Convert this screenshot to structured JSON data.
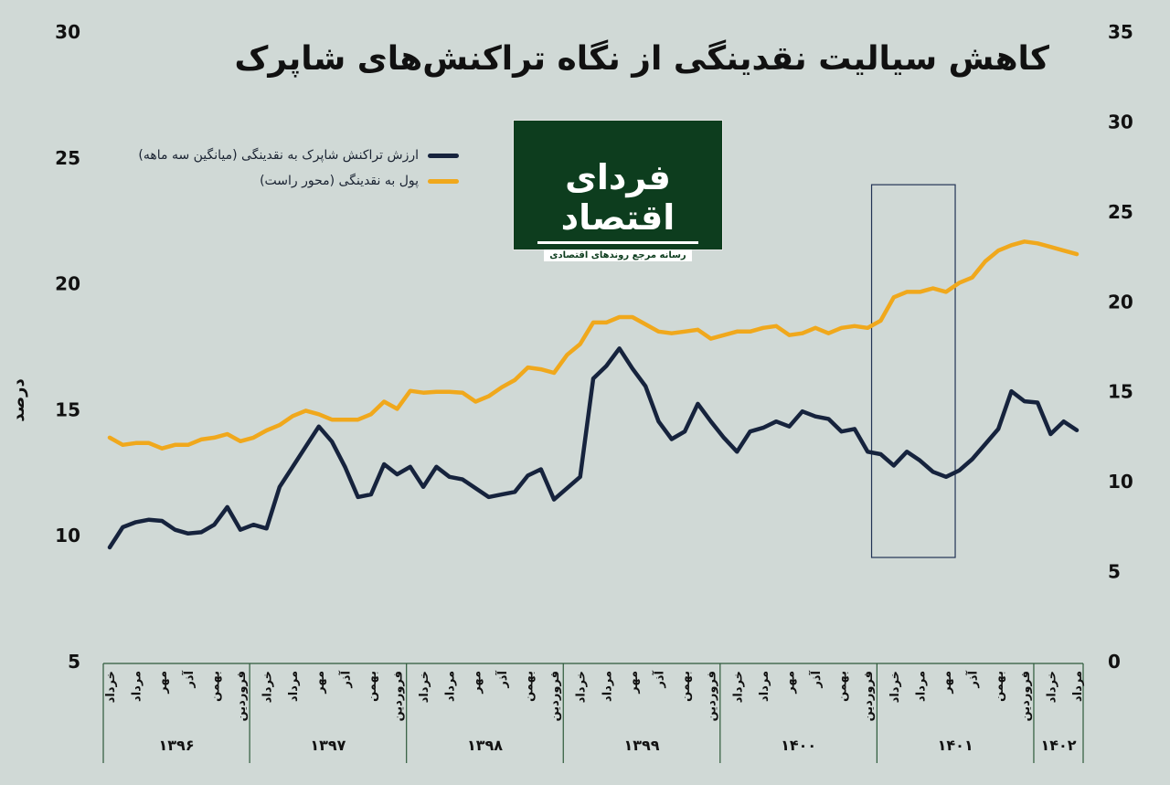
{
  "title": "کاهش سیالیت نقدینگی از نگاه تراکنش‌های شاپرک",
  "logo": {
    "main": "فردای اقتصاد",
    "sub": "رسانه مرجع روندهای اقتصادی"
  },
  "colors": {
    "background": "#d0d9d6",
    "series_navy": "#16233d",
    "series_gold": "#f0a81c",
    "grid": "#2d5a3a"
  },
  "chart_data": {
    "type": "line",
    "ylabel": "درصد",
    "yleft": {
      "ticks": [
        "5",
        "10",
        "15",
        "20",
        "25",
        "30"
      ],
      "range": [
        5,
        30
      ]
    },
    "yright": {
      "ticks": [
        "0",
        "5",
        "10",
        "15",
        "20",
        "25",
        "30",
        "35"
      ],
      "range": [
        0,
        35
      ]
    },
    "legend": [
      {
        "name": "ارزش تراکنش شاپرک به نقدینگی (میانگین سه ماهه)",
        "color": "#16233d"
      },
      {
        "name": "پول به نقدینگی (محور راست)",
        "color": "#f0a81c"
      }
    ],
    "month_ticks": [
      "خرداد",
      "مرداد",
      "مهر",
      "آذر",
      "بهمن",
      "فروردین",
      "خرداد",
      "مرداد",
      "مهر",
      "آذر",
      "بهمن",
      "فروردین",
      "خرداد",
      "مرداد",
      "مهر",
      "آذر",
      "بهمن",
      "فروردین",
      "خرداد",
      "مرداد",
      "مهر",
      "آذر",
      "بهمن",
      "فروردین",
      "خرداد",
      "مرداد",
      "مهر",
      "آذر",
      "بهمن",
      "فروردین",
      "خرداد",
      "مرداد",
      "مهر",
      "آذر",
      "بهمن",
      "فروردین",
      "خرداد",
      "مرداد"
    ],
    "years": [
      {
        "label": "۱۳۹۶",
        "months": 11
      },
      {
        "label": "۱۳۹۷",
        "months": 12
      },
      {
        "label": "۱۳۹۸",
        "months": 12
      },
      {
        "label": "۱۳۹۹",
        "months": 12
      },
      {
        "label": "۱۴۰۰",
        "months": 12
      },
      {
        "label": "۱۴۰۱",
        "months": 12
      },
      {
        "label": "۱۴۰۲",
        "months": 5
      }
    ],
    "series": [
      {
        "name": "ارزش تراکنش شاپرک به نقدینگی (میانگین سه ماهه)",
        "axis": "left",
        "values": [
          9.5,
          10.3,
          10.5,
          10.6,
          10.55,
          10.2,
          10.05,
          10.1,
          10.4,
          11.1,
          10.2,
          10.4,
          10.25,
          11.9,
          12.7,
          13.5,
          14.3,
          13.7,
          12.7,
          11.5,
          11.6,
          12.8,
          12.4,
          12.7,
          11.9,
          12.7,
          12.3,
          12.2,
          11.85,
          11.5,
          11.6,
          11.7,
          12.35,
          12.6,
          11.4,
          11.85,
          12.3,
          16.2,
          16.7,
          17.4,
          16.6,
          15.9,
          14.5,
          13.8,
          14.1,
          15.2,
          14.5,
          13.85,
          13.3,
          14.1,
          14.25,
          14.5,
          14.3,
          14.9,
          14.7,
          14.6,
          14.1,
          14.2,
          13.3,
          13.2,
          12.75,
          13.3,
          12.95,
          12.5,
          12.3,
          12.55,
          13.0,
          13.6,
          14.2,
          15.7,
          15.3,
          15.25,
          14.0,
          14.5,
          14.15
        ]
      },
      {
        "name": "پول به نقدینگی (محور راست)",
        "axis": "right",
        "values": [
          12.4,
          12.0,
          12.1,
          12.1,
          11.8,
          12.0,
          12.0,
          12.3,
          12.4,
          12.6,
          12.2,
          12.4,
          12.8,
          13.1,
          13.6,
          13.9,
          13.7,
          13.4,
          13.4,
          13.4,
          13.7,
          14.4,
          14.0,
          15.0,
          14.9,
          14.95,
          14.95,
          14.9,
          14.4,
          14.7,
          15.2,
          15.6,
          16.3,
          16.2,
          16.0,
          17.0,
          17.6,
          18.8,
          18.8,
          19.1,
          19.1,
          18.7,
          18.3,
          18.2,
          18.3,
          18.4,
          17.9,
          18.1,
          18.3,
          18.3,
          18.5,
          18.6,
          18.1,
          18.2,
          18.5,
          18.2,
          18.5,
          18.6,
          18.5,
          18.9,
          20.2,
          20.5,
          20.5,
          20.7,
          20.5,
          21.0,
          21.3,
          22.2,
          22.8,
          23.1,
          23.3,
          23.2,
          23.0,
          22.8,
          22.6
        ]
      }
    ],
    "highlight": {
      "from_index": 59,
      "to_index": 64,
      "ymin": 9.1,
      "ymax": 23.9
    }
  }
}
